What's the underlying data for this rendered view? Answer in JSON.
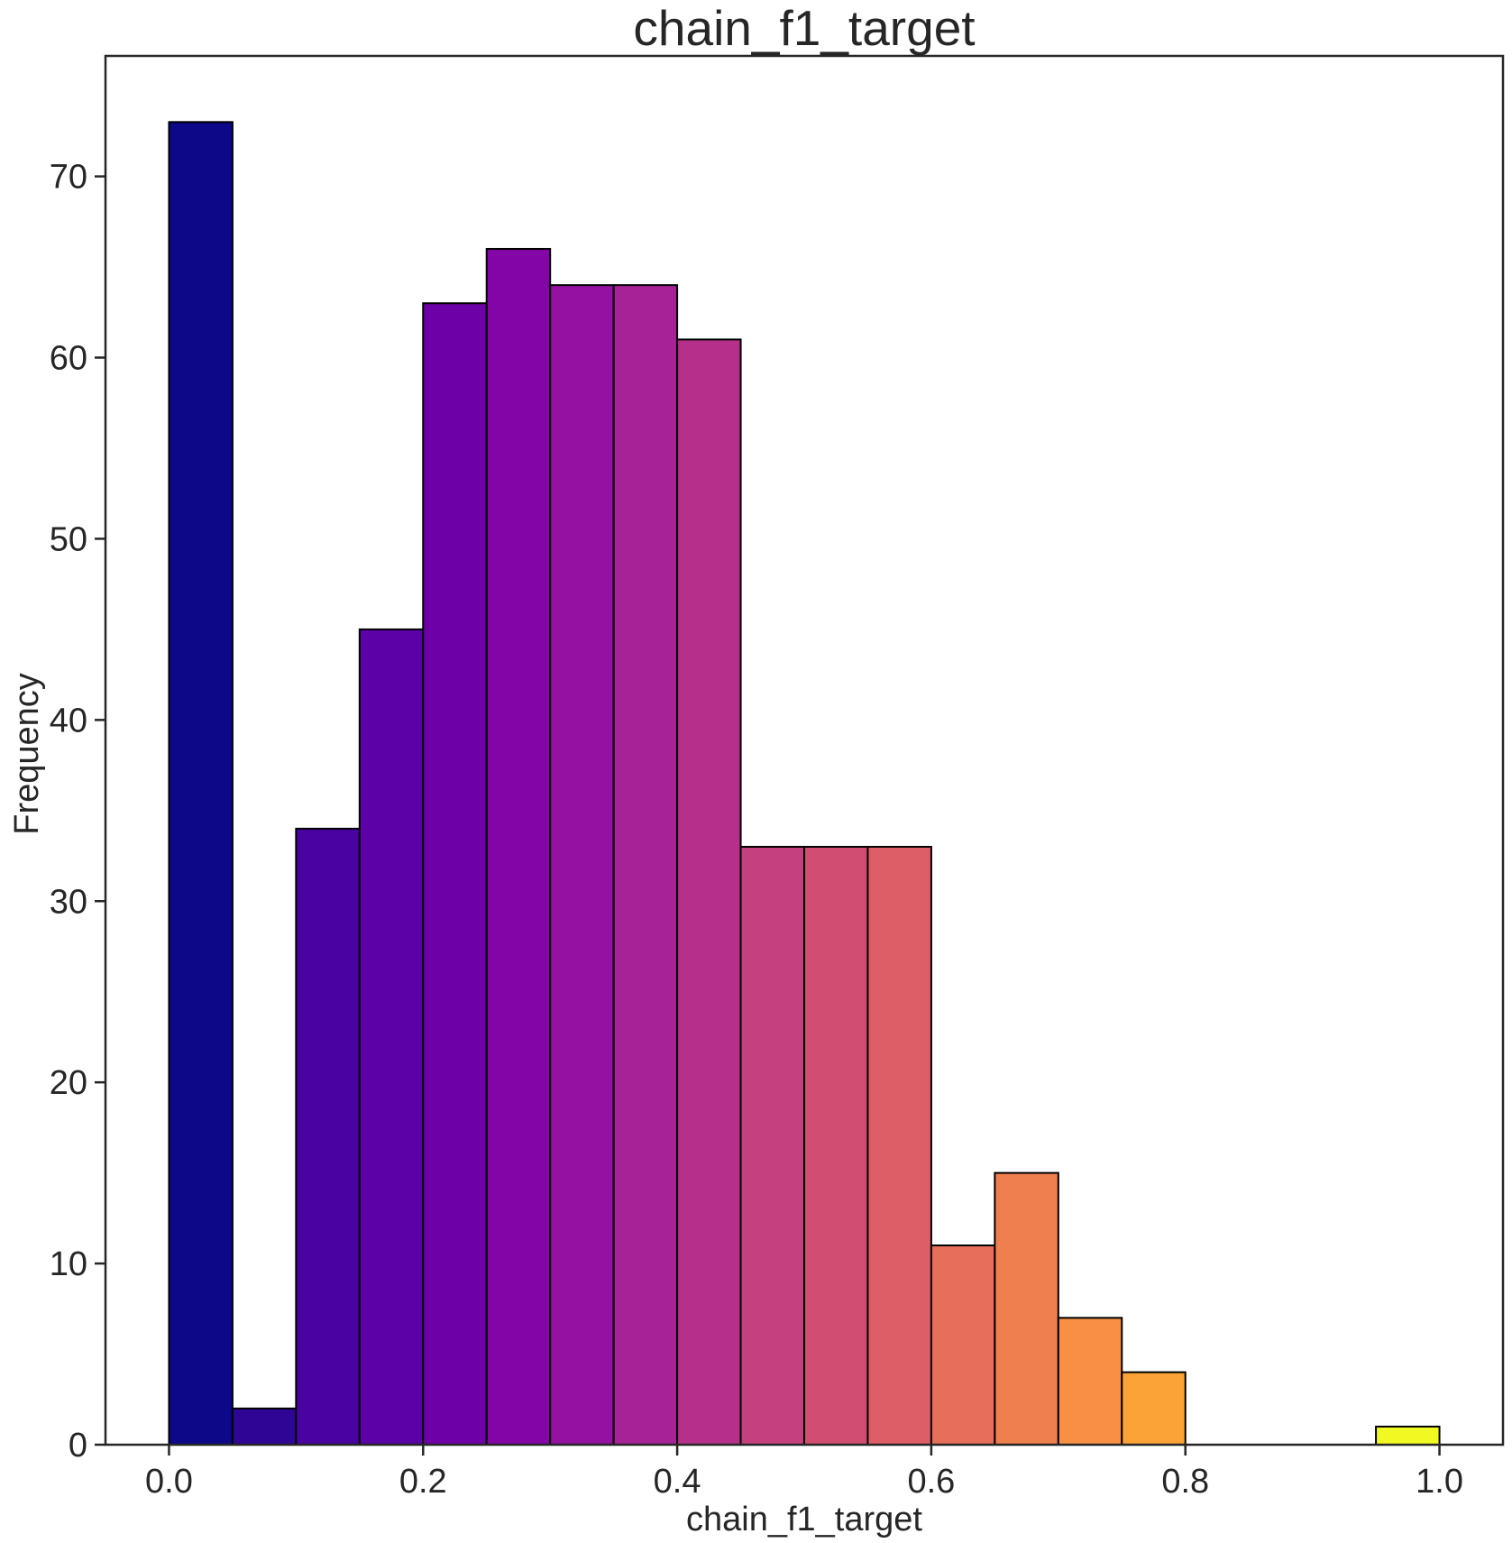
{
  "chart_data": {
    "type": "bar",
    "title": "chain_f1_target",
    "xlabel": "chain_f1_target",
    "ylabel": "Frequency",
    "xlim": [
      -0.05,
      1.05
    ],
    "ylim": [
      0,
      76.65
    ],
    "xticks": [
      0.0,
      0.2,
      0.4,
      0.6,
      0.8,
      1.0
    ],
    "xtick_labels": [
      "0.0",
      "0.2",
      "0.4",
      "0.6",
      "0.8",
      "1.0"
    ],
    "yticks": [
      0,
      10,
      20,
      30,
      40,
      50,
      60,
      70
    ],
    "ytick_labels": [
      "0",
      "10",
      "20",
      "30",
      "40",
      "50",
      "60",
      "70"
    ],
    "bin_edges": [
      0.0,
      0.05,
      0.1,
      0.15,
      0.2,
      0.25,
      0.3,
      0.35,
      0.4,
      0.45,
      0.5,
      0.55,
      0.6,
      0.65,
      0.7,
      0.75,
      0.8,
      0.85,
      0.9,
      0.95,
      1.0
    ],
    "values": [
      73,
      2,
      34,
      45,
      63,
      66,
      64,
      64,
      61,
      33,
      33,
      33,
      11,
      15,
      7,
      4,
      0,
      0,
      0,
      1
    ],
    "colors": [
      "#0d0887",
      "#2f0596",
      "#4903a0",
      "#5c01a6",
      "#6e00a8",
      "#8405a7",
      "#9511a1",
      "#a72197",
      "#b6308b",
      "#c5407e",
      "#d14e72",
      "#dd5e66",
      "#e76e5b",
      "#f07f4f",
      "#f79044",
      "#fca338",
      "#feb72d",
      "#fccd25",
      "#f7e225",
      "#f0f921"
    ],
    "grid": false,
    "legend": "none"
  }
}
